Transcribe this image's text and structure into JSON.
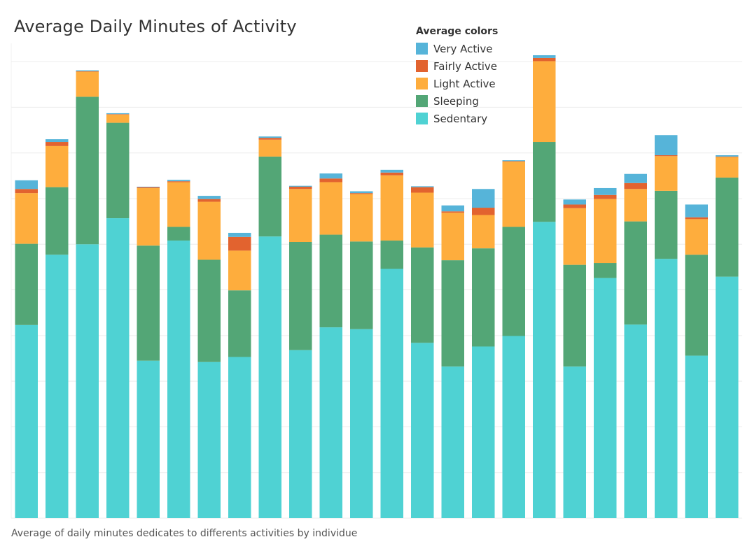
{
  "chart_data": {
    "type": "bar",
    "stacked": true,
    "title": "Average Daily Minutes of Activity",
    "caption": "Average of daily minutes dedicates to differents activities by individue",
    "xlabel": "",
    "ylabel": "",
    "ylim": [
      0,
      1040
    ],
    "grid": true,
    "legend": {
      "title": "Average colors",
      "placement": "top-right",
      "entries": [
        {
          "name": "Very Active",
          "color": "#56B4D9"
        },
        {
          "name": "Fairly Active",
          "color": "#E2632F"
        },
        {
          "name": "Light Active",
          "color": "#FEAD3D"
        },
        {
          "name": "Sleeping",
          "color": "#53A676"
        },
        {
          "name": "Sedentary",
          "color": "#4FD2D3"
        }
      ]
    },
    "series": [
      {
        "name": "Sedentary",
        "color": "#4FD2D3",
        "values": [
          423,
          577,
          600,
          657,
          345,
          608,
          342,
          353,
          617,
          368,
          418,
          414,
          546,
          384,
          332,
          376,
          399,
          649,
          332,
          526,
          424,
          568,
          356,
          529
        ]
      },
      {
        "name": "Sleeping",
        "color": "#53A676",
        "values": [
          178,
          148,
          323,
          209,
          252,
          30,
          224,
          146,
          175,
          237,
          203,
          192,
          62,
          209,
          233,
          215,
          239,
          175,
          223,
          33,
          226,
          149,
          221,
          217
        ]
      },
      {
        "name": "Light Active",
        "color": "#FEAD3D",
        "values": [
          111,
          90,
          55,
          18,
          126,
          98,
          127,
          87,
          37,
          116,
          115,
          104,
          143,
          120,
          104,
          73,
          143,
          177,
          124,
          140,
          71,
          76,
          78,
          45
        ]
      },
      {
        "name": "Fairly Active",
        "color": "#E2632F",
        "values": [
          9,
          9,
          1,
          1,
          2,
          2,
          6,
          30,
          4,
          5,
          8,
          2,
          6,
          12,
          3,
          16,
          1,
          7,
          8,
          9,
          13,
          2,
          4,
          1
        ]
      },
      {
        "name": "Very Active",
        "color": "#56B4D9",
        "values": [
          19,
          6,
          2,
          2,
          1,
          3,
          7,
          9,
          3,
          2,
          11,
          4,
          6,
          2,
          13,
          41,
          2,
          6,
          11,
          15,
          20,
          44,
          28,
          3
        ]
      }
    ]
  }
}
